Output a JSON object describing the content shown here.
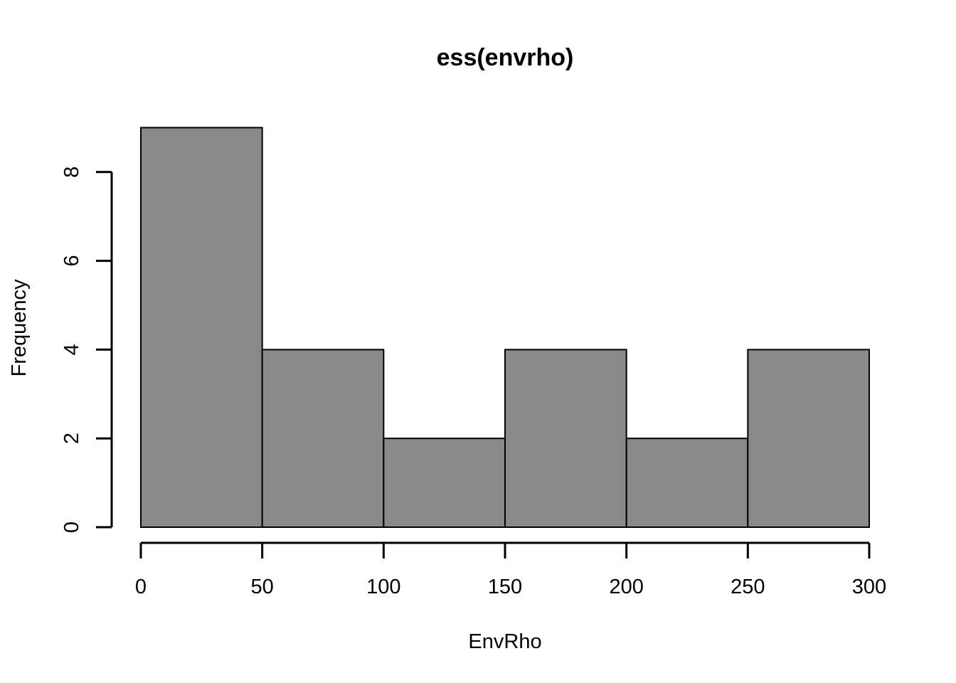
{
  "chart_data": {
    "type": "bar",
    "title": "ess(envrho)",
    "xlabel": "EnvRho",
    "ylabel": "Frequency",
    "bins": [
      {
        "start": 0,
        "end": 50,
        "count": 9
      },
      {
        "start": 50,
        "end": 100,
        "count": 4
      },
      {
        "start": 100,
        "end": 150,
        "count": 2
      },
      {
        "start": 150,
        "end": 200,
        "count": 4
      },
      {
        "start": 200,
        "end": 250,
        "count": 2
      },
      {
        "start": 250,
        "end": 300,
        "count": 4
      }
    ],
    "xlim": [
      0,
      300
    ],
    "ylim": [
      0,
      9
    ],
    "x_ticks": [
      0,
      50,
      100,
      150,
      200,
      250,
      300
    ],
    "y_ticks": [
      0,
      2,
      4,
      6,
      8
    ],
    "bar_color": "#898989",
    "grid": false,
    "legend": "none"
  }
}
